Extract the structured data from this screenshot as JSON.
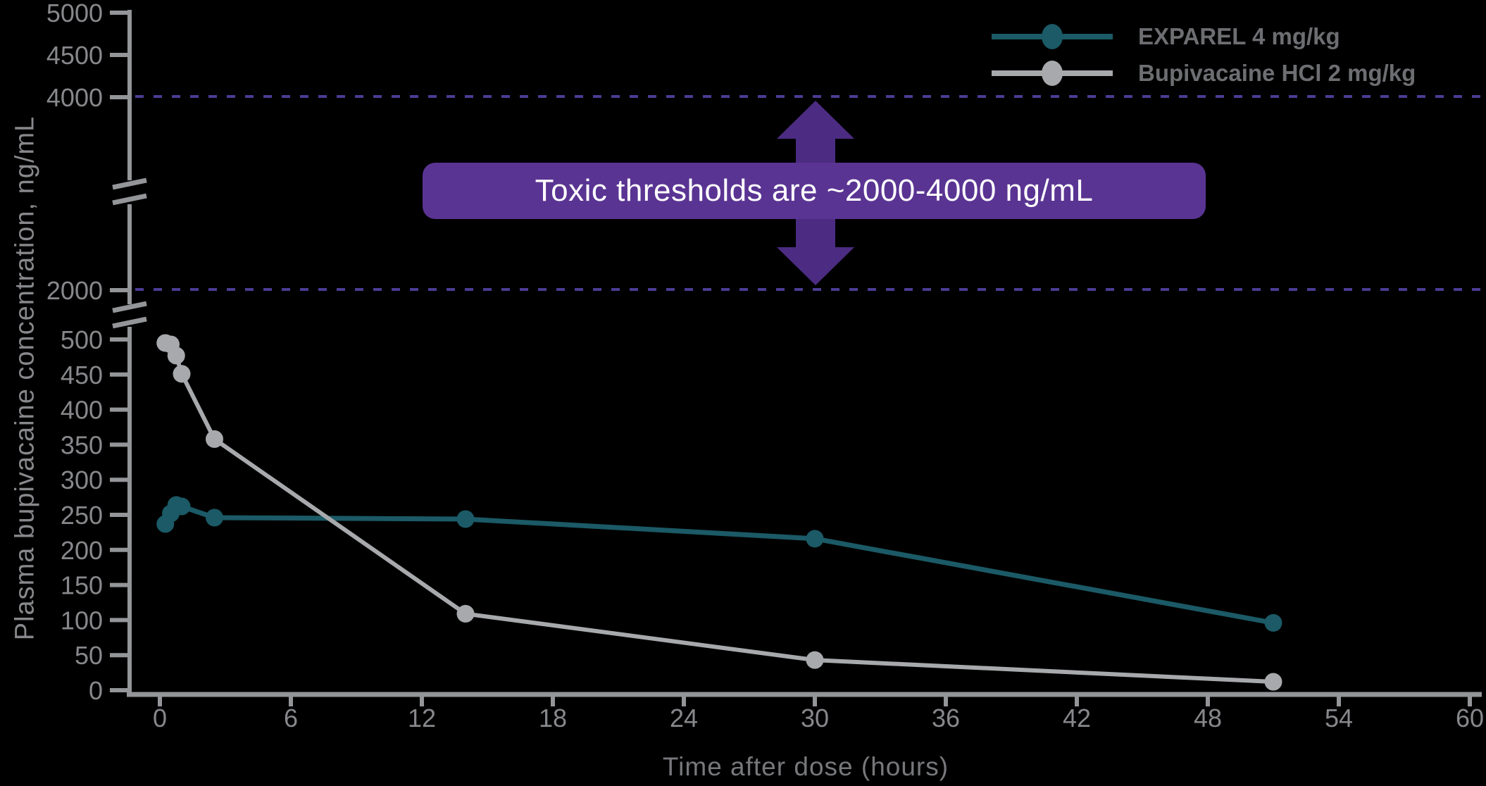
{
  "colors": {
    "background": "#000000",
    "axis": "#939598",
    "tick_label": "#87888B",
    "axis_title": "#77787B",
    "legend_text": "#6D6E71",
    "threshold_dash": "#4C3C94",
    "banner_bg": "#5A3493",
    "arrow": "#4C2C82",
    "exparel": "#1B5A66",
    "bupivacaine": "#A7A9AC"
  },
  "legend": {
    "items": [
      {
        "label": "EXPAREL 4 mg/kg",
        "color": "#1B5A66"
      },
      {
        "label": "Bupivacaine HCl 2 mg/kg",
        "color": "#A7A9AC"
      }
    ]
  },
  "banner": {
    "text": "Toxic thresholds are ~2000-4000 ng/mL"
  },
  "axes": {
    "x_title": "Time after dose (hours)",
    "y_title": "Plasma bupivacaine concentration, ng/mL"
  },
  "chart_data": {
    "type": "line",
    "title": "",
    "xlabel": "Time after dose (hours)",
    "ylabel": "Plasma bupivacaine concentration, ng/mL",
    "xlim": [
      0,
      60
    ],
    "x_ticks": [
      0,
      6,
      12,
      18,
      24,
      30,
      36,
      42,
      48,
      54,
      60
    ],
    "y_axis_broken": true,
    "y_ticks_upper": [
      5000,
      4500,
      4000
    ],
    "y_ticks_mid": [
      2000
    ],
    "y_ticks_lower": [
      500,
      450,
      400,
      350,
      300,
      250,
      200,
      150,
      100,
      50,
      0
    ],
    "threshold_lines_ng_ml": [
      4000,
      2000
    ],
    "annotation": "Toxic thresholds are ~2000-4000 ng/mL",
    "legend_position": "top-right",
    "grid": false,
    "series": [
      {
        "name": "EXPAREL 4 mg/kg",
        "color": "#1B5A66",
        "points_hours_ngml": [
          [
            0.25,
            237
          ],
          [
            0.5,
            252
          ],
          [
            0.75,
            264
          ],
          [
            1,
            262
          ],
          [
            2.5,
            246
          ],
          [
            14,
            244
          ],
          [
            30,
            216
          ],
          [
            51,
            96
          ]
        ]
      },
      {
        "name": "Bupivacaine HCl 2 mg/kg",
        "color": "#A7A9AC",
        "points_hours_ngml": [
          [
            0.25,
            495
          ],
          [
            0.5,
            493
          ],
          [
            0.75,
            477
          ],
          [
            1,
            451
          ],
          [
            2.5,
            358
          ],
          [
            14,
            109
          ],
          [
            30,
            43
          ],
          [
            51,
            12
          ]
        ]
      }
    ]
  }
}
